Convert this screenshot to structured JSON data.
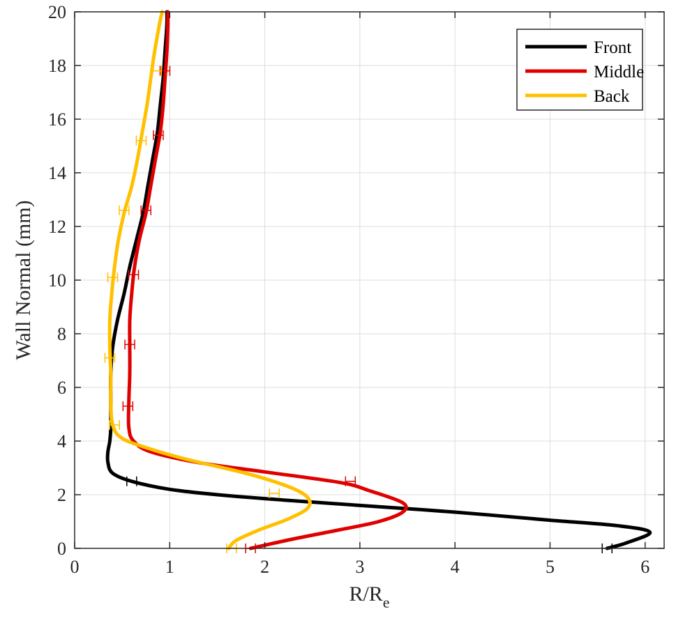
{
  "chart_data": {
    "type": "line",
    "xlabel_main": "R/R",
    "xlabel_sub": "e",
    "ylabel": "Wall Normal (mm)",
    "xlim": [
      0,
      6.2
    ],
    "ylim": [
      0,
      20
    ],
    "x_ticks": [
      "0",
      "1",
      "2",
      "3",
      "4",
      "5",
      "6"
    ],
    "y_ticks": [
      "0",
      "2",
      "4",
      "6",
      "8",
      "10",
      "12",
      "14",
      "16",
      "18",
      "20"
    ],
    "grid": true,
    "legend_position": "top-right",
    "series": [
      {
        "name": "Front",
        "color": "#000000",
        "points": [
          [
            5.6,
            0
          ],
          [
            5.8,
            0.2
          ],
          [
            6.05,
            0.6
          ],
          [
            5.7,
            0.85
          ],
          [
            5.0,
            1.05
          ],
          [
            4.0,
            1.35
          ],
          [
            3.0,
            1.6
          ],
          [
            2.2,
            1.8
          ],
          [
            1.5,
            2.0
          ],
          [
            1.0,
            2.2
          ],
          [
            0.6,
            2.5
          ],
          [
            0.4,
            2.8
          ],
          [
            0.35,
            3.2
          ],
          [
            0.35,
            3.6
          ],
          [
            0.37,
            4.0
          ],
          [
            0.38,
            4.5
          ],
          [
            0.38,
            5.5
          ],
          [
            0.38,
            6.5
          ],
          [
            0.4,
            7.5
          ],
          [
            0.45,
            8.5
          ],
          [
            0.52,
            9.5
          ],
          [
            0.58,
            10.5
          ],
          [
            0.65,
            11.5
          ],
          [
            0.72,
            12.5
          ],
          [
            0.77,
            13.5
          ],
          [
            0.82,
            14.5
          ],
          [
            0.87,
            15.5
          ],
          [
            0.9,
            16.5
          ],
          [
            0.93,
            17.5
          ],
          [
            0.95,
            18.5
          ],
          [
            0.97,
            19.5
          ],
          [
            0.97,
            20
          ]
        ]
      },
      {
        "name": "Middle",
        "color": "#e00000",
        "points": [
          [
            1.85,
            0
          ],
          [
            2.3,
            0.35
          ],
          [
            2.8,
            0.7
          ],
          [
            3.2,
            1.0
          ],
          [
            3.45,
            1.35
          ],
          [
            3.45,
            1.7
          ],
          [
            3.1,
            2.15
          ],
          [
            2.8,
            2.45
          ],
          [
            2.0,
            2.85
          ],
          [
            1.3,
            3.2
          ],
          [
            0.8,
            3.6
          ],
          [
            0.62,
            4.0
          ],
          [
            0.57,
            4.5
          ],
          [
            0.57,
            5.5
          ],
          [
            0.58,
            6.5
          ],
          [
            0.58,
            7.5
          ],
          [
            0.58,
            8.5
          ],
          [
            0.6,
            9.5
          ],
          [
            0.63,
            10.5
          ],
          [
            0.68,
            11.5
          ],
          [
            0.75,
            12.5
          ],
          [
            0.8,
            13.5
          ],
          [
            0.85,
            14.5
          ],
          [
            0.9,
            15.5
          ],
          [
            0.93,
            16.5
          ],
          [
            0.95,
            17.5
          ],
          [
            0.97,
            18.5
          ],
          [
            0.98,
            19.5
          ],
          [
            0.98,
            20
          ]
        ]
      },
      {
        "name": "Back",
        "color": "#ffc000",
        "points": [
          [
            1.62,
            0
          ],
          [
            1.7,
            0.3
          ],
          [
            1.95,
            0.7
          ],
          [
            2.25,
            1.1
          ],
          [
            2.45,
            1.5
          ],
          [
            2.45,
            1.9
          ],
          [
            2.25,
            2.3
          ],
          [
            1.8,
            2.8
          ],
          [
            1.2,
            3.3
          ],
          [
            0.8,
            3.7
          ],
          [
            0.5,
            4.1
          ],
          [
            0.4,
            4.6
          ],
          [
            0.38,
            5.5
          ],
          [
            0.38,
            6.5
          ],
          [
            0.37,
            7.5
          ],
          [
            0.37,
            8.5
          ],
          [
            0.39,
            9.5
          ],
          [
            0.42,
            10.5
          ],
          [
            0.46,
            11.5
          ],
          [
            0.52,
            12.5
          ],
          [
            0.6,
            13.5
          ],
          [
            0.66,
            14.5
          ],
          [
            0.71,
            15.5
          ],
          [
            0.76,
            16.5
          ],
          [
            0.8,
            17.5
          ],
          [
            0.84,
            18.5
          ],
          [
            0.89,
            19.5
          ],
          [
            0.92,
            20
          ]
        ]
      }
    ],
    "error_markers": [
      {
        "series": "Front",
        "color": "#000000",
        "points": [
          [
            0.6,
            2.5
          ],
          [
            5.6,
            0
          ]
        ]
      },
      {
        "series": "Middle",
        "color": "#e00000",
        "points": [
          [
            2.9,
            2.5
          ],
          [
            1.85,
            0
          ],
          [
            0.56,
            5.3
          ],
          [
            0.58,
            7.6
          ],
          [
            0.62,
            10.2
          ],
          [
            0.75,
            12.6
          ],
          [
            0.88,
            15.4
          ],
          [
            0.95,
            17.8
          ]
        ]
      },
      {
        "series": "Back",
        "color": "#ffc000",
        "points": [
          [
            2.1,
            2.05
          ],
          [
            1.65,
            0
          ],
          [
            0.42,
            4.6
          ],
          [
            0.37,
            7.1
          ],
          [
            0.4,
            10.1
          ],
          [
            0.52,
            12.6
          ],
          [
            0.7,
            15.2
          ],
          [
            0.86,
            17.8
          ]
        ]
      }
    ]
  }
}
